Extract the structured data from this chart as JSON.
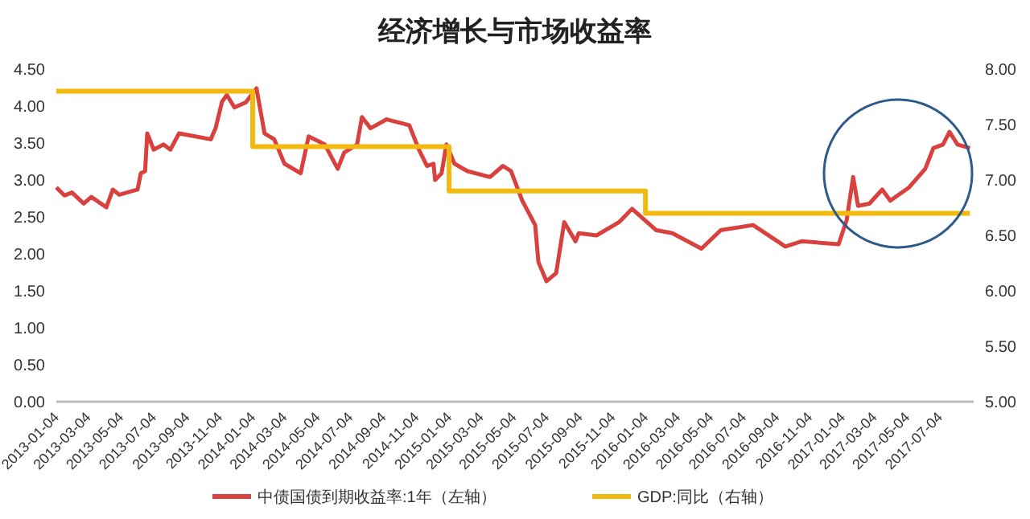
{
  "chart_data": {
    "type": "line",
    "title": "经济增长与市场收益率",
    "xlim": [
      "2013-01-04",
      "2017-09-05"
    ],
    "xticks": [
      {
        "value": "2013-01-04",
        "label": "2013-01-04"
      },
      {
        "value": "2013-03-04",
        "label": "2013-03-04"
      },
      {
        "value": "2013-05-04",
        "label": "2013-05-04"
      },
      {
        "value": "2013-07-04",
        "label": "2013-07-04"
      },
      {
        "value": "2013-09-04",
        "label": "2013-09-04"
      },
      {
        "value": "2013-11-04",
        "label": "2013-11-04"
      },
      {
        "value": "2014-01-04",
        "label": "2014-01-04"
      },
      {
        "value": "2014-03-04",
        "label": "2014-03-04"
      },
      {
        "value": "2014-05-04",
        "label": "2014-05-04"
      },
      {
        "value": "2014-07-04",
        "label": "2014-07-04"
      },
      {
        "value": "2014-09-04",
        "label": "2014-09-04"
      },
      {
        "value": "2014-11-04",
        "label": "2014-11-04"
      },
      {
        "value": "2015-01-04",
        "label": "2015-01-04"
      },
      {
        "value": "2015-03-04",
        "label": "2015-03-04"
      },
      {
        "value": "2015-05-04",
        "label": "2015-05-04"
      },
      {
        "value": "2015-07-04",
        "label": "2015-07-04"
      },
      {
        "value": "2015-09-04",
        "label": "2015-09-04"
      },
      {
        "value": "2015-11-04",
        "label": "2015-11-04"
      },
      {
        "value": "2016-01-04",
        "label": "2016-01-04"
      },
      {
        "value": "2016-03-04",
        "label": "2016-03-04"
      },
      {
        "value": "2016-05-04",
        "label": "2016-05-04"
      },
      {
        "value": "2016-07-04",
        "label": "2016-07-04"
      },
      {
        "value": "2016-09-04",
        "label": "2016-09-04"
      },
      {
        "value": "2016-11-04",
        "label": "2016-11-04"
      },
      {
        "value": "2017-01-04",
        "label": "2017-01-04"
      },
      {
        "value": "2017-03-04",
        "label": "2017-03-04"
      },
      {
        "value": "2017-05-04",
        "label": "2017-05-04"
      },
      {
        "value": "2017-07-04",
        "label": "2017-07-04"
      }
    ],
    "ylim": [
      0,
      4.5
    ],
    "yticks": [
      {
        "value": 0,
        "label": "0.00"
      },
      {
        "value": 0.5,
        "label": "0.50"
      },
      {
        "value": 1,
        "label": "1.00"
      },
      {
        "value": 1.5,
        "label": "1.50"
      },
      {
        "value": 2,
        "label": "2.00"
      },
      {
        "value": 2.5,
        "label": "2.50"
      },
      {
        "value": 3,
        "label": "3.00"
      },
      {
        "value": 3.5,
        "label": "3.50"
      },
      {
        "value": 4,
        "label": "4.00"
      },
      {
        "value": 4.5,
        "label": "4.50"
      }
    ],
    "y2lim": [
      5,
      8
    ],
    "y2ticks": [
      {
        "value": 5,
        "label": "5.00"
      },
      {
        "value": 5.5,
        "label": "5.50"
      },
      {
        "value": 6,
        "label": "6.00"
      },
      {
        "value": 6.5,
        "label": "6.50"
      },
      {
        "value": 7,
        "label": "7.00"
      },
      {
        "value": 7.5,
        "label": "7.50"
      },
      {
        "value": 8,
        "label": "8.00"
      }
    ],
    "legend": "bottom",
    "grid": false,
    "series": [
      {
        "name": "中债国债到期收益率:1年（左轴）",
        "color": "#d9413f",
        "x": [
          "2013-01-04",
          "2013-01-19",
          "2013-02-02",
          "2013-02-24",
          "2013-03-10",
          "2013-04-07",
          "2013-04-19",
          "2013-05-01",
          "2013-06-04",
          "2013-06-10",
          "2013-06-18",
          "2013-06-22",
          "2013-07-04",
          "2013-07-22",
          "2013-08-04",
          "2013-08-20",
          "2013-10-18",
          "2013-10-27",
          "2013-11-08",
          "2013-11-17",
          "2013-12-01",
          "2013-12-22",
          "2014-01-11",
          "2014-01-26",
          "2014-02-13",
          "2014-03-04",
          "2014-04-03",
          "2014-04-18",
          "2014-05-18",
          "2014-06-11",
          "2014-06-23",
          "2014-07-17",
          "2014-07-26",
          "2014-08-11",
          "2014-09-10",
          "2014-10-22",
          "2014-11-09",
          "2014-11-24",
          "2014-12-06",
          "2014-12-09",
          "2014-12-21",
          "2014-12-30",
          "2015-01-14",
          "2015-02-07",
          "2015-03-21",
          "2015-04-14",
          "2015-04-29",
          "2015-05-20",
          "2015-06-13",
          "2015-06-19",
          "2015-07-04",
          "2015-07-22",
          "2015-08-06",
          "2015-08-27",
          "2015-09-02",
          "2015-10-05",
          "2015-11-16",
          "2015-12-10",
          "2016-01-24",
          "2016-02-23",
          "2016-04-17",
          "2016-05-23",
          "2016-07-22",
          "2016-09-20",
          "2016-10-20",
          "2016-12-28",
          "2017-01-12",
          "2017-01-24",
          "2017-02-02",
          "2017-02-23",
          "2017-03-19",
          "2017-04-03",
          "2017-05-08",
          "2017-06-07",
          "2017-06-22",
          "2017-07-10",
          "2017-07-22",
          "2017-08-06",
          "2017-08-29"
        ],
        "values": [
          2.9,
          2.79,
          2.83,
          2.68,
          2.77,
          2.63,
          2.87,
          2.8,
          2.87,
          3.09,
          3.12,
          3.63,
          3.41,
          3.48,
          3.41,
          3.63,
          3.55,
          3.7,
          4.06,
          4.15,
          3.98,
          4.05,
          4.24,
          3.63,
          3.55,
          3.22,
          3.09,
          3.59,
          3.48,
          3.15,
          3.37,
          3.48,
          3.85,
          3.7,
          3.82,
          3.74,
          3.41,
          3.19,
          3.22,
          3.0,
          3.09,
          3.48,
          3.22,
          3.12,
          3.04,
          3.19,
          3.12,
          2.72,
          2.39,
          1.89,
          1.63,
          1.74,
          2.43,
          2.17,
          2.28,
          2.25,
          2.43,
          2.61,
          2.32,
          2.28,
          2.07,
          2.32,
          2.39,
          2.1,
          2.17,
          2.13,
          2.46,
          3.04,
          2.65,
          2.68,
          2.87,
          2.72,
          2.9,
          3.15,
          3.43,
          3.48,
          3.65,
          3.48,
          3.43
        ]
      },
      {
        "name": "GDP:同比（右轴）",
        "color": "#f2b90f",
        "type": "step",
        "axis": "y2",
        "x": [
          "2013-01-04",
          "2014-01-04",
          "2015-01-04",
          "2016-01-04",
          "2017-08-29"
        ],
        "values": [
          7.8,
          7.3,
          6.9,
          6.7,
          6.7
        ]
      }
    ]
  }
}
